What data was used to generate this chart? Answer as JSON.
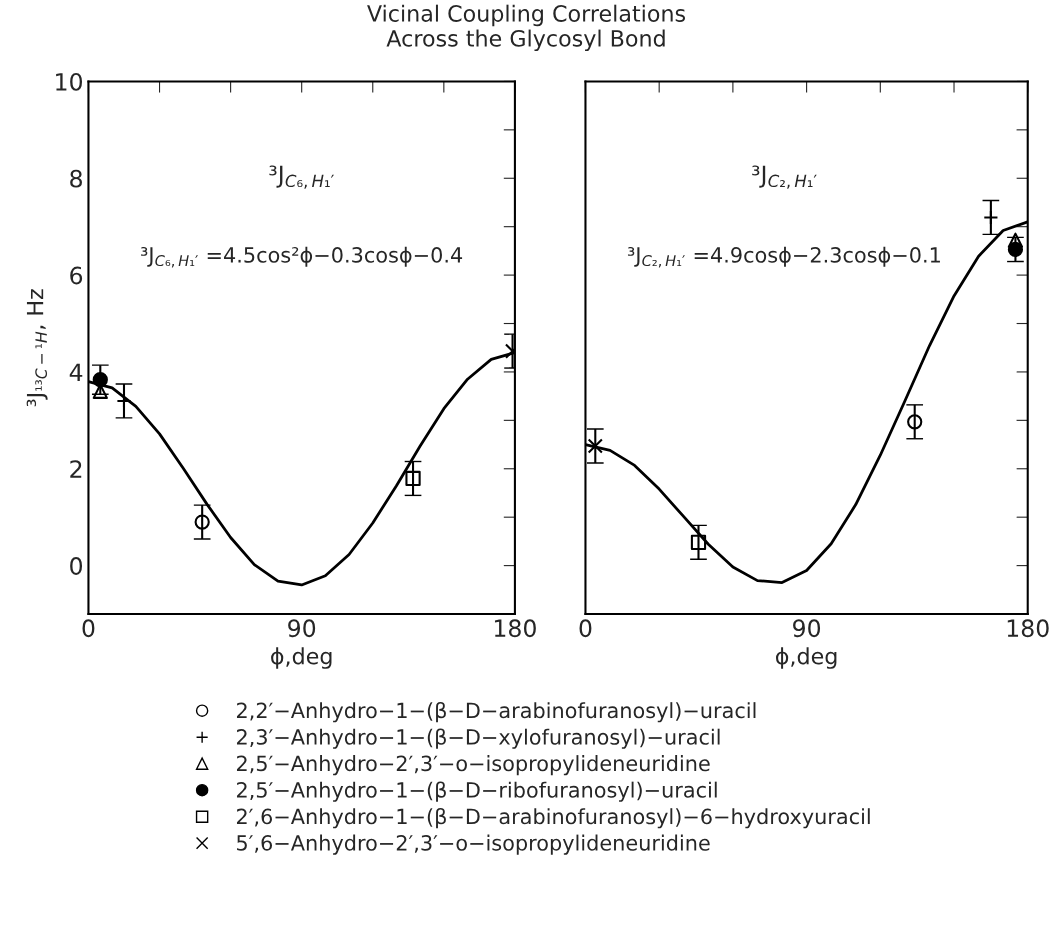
{
  "chart_data": [
    {
      "type": "scatter",
      "title": "Vicinal Coupling Correlations\nAcross the Glycosyl Bond",
      "xlabel": "ϕ,deg",
      "ylabel": "³J$_{¹³C−¹H}$, Hz",
      "xlim": [
        0,
        180
      ],
      "xticks": [
        0,
        {
          "value": 30,
          "label": null
        },
        {
          "value": 60,
          "label": null
        },
        90,
        {
          "value": 120,
          "label": null
        },
        {
          "value": 150,
          "label": null
        },
        180
      ],
      "ylim": [
        -1,
        10
      ],
      "yticks": [
        {
          "value": -1,
          "label": null
        },
        0,
        {
          "value": 1,
          "label": null
        },
        2,
        {
          "value": 3,
          "label": null
        },
        4,
        {
          "value": 5,
          "label": null
        },
        6,
        {
          "value": 7,
          "label": null
        },
        8,
        {
          "value": 9,
          "label": null
        },
        10
      ],
      "grid": false,
      "legend": "bottom",
      "annotations": [
        "³J$_{C₆,H₁′}$",
        "³J$_{C₆,H₁′}$ =4.5cos²ϕ−0.3cosϕ−0.4"
      ],
      "series": [
        {
          "name": "2,2′−Anhydro−1−(β−D−arabinofuranosyl)−uracil",
          "color": "#000000",
          "marker": "circle",
          "x": [
            48
          ],
          "values": [
            0.9
          ],
          "errors": [
            0.35
          ]
        },
        {
          "name": "2,3′−Anhydro−1−(β−D−xylofuranosyl)−uracil",
          "color": "#000000",
          "marker": "plus",
          "x": [
            15
          ],
          "values": [
            3.4
          ],
          "errors": [
            0.35
          ]
        },
        {
          "name": "2,5′−Anhydro−2′,3′−o−isopropylideneuridine",
          "color": "#000000",
          "marker": "triangle",
          "x": [
            5
          ],
          "values": [
            3.6
          ],
          "errors": [
            null
          ]
        },
        {
          "name": "2,5′−Anhydro−1−(β−D−ribofuranosyl)−uracil",
          "color": "#000000",
          "marker": "dot",
          "x": [
            5
          ],
          "values": [
            3.84
          ],
          "errors": [
            0.3
          ]
        },
        {
          "name": "2′,6−Anhydro−1−(β−D−arabinofuranosyl)−6−hydroxyuracil",
          "color": "#000000",
          "marker": "square",
          "x": [
            137
          ],
          "values": [
            1.8
          ],
          "errors": [
            0.35
          ]
        },
        {
          "name": "5′,6−Anhydro−2′,3′−o−isopropylideneuridine",
          "color": "#000000",
          "marker": "cross",
          "x": [
            179
          ],
          "values": [
            4.43
          ],
          "errors": [
            0.35
          ]
        },
        {
          "type": "line",
          "color": "#000000",
          "marker": "none",
          "line_style": "solid",
          "x": [
            0,
            10,
            20,
            30,
            40,
            50,
            60,
            70,
            80,
            90,
            100,
            110,
            120,
            130,
            140,
            150,
            160,
            170,
            180
          ],
          "values": [
            3.8,
            3.67,
            3.29,
            2.72,
            2.01,
            1.27,
            0.58,
            0.02,
            -0.32,
            -0.4,
            -0.21,
            0.23,
            0.88,
            1.65,
            2.47,
            3.24,
            3.85,
            4.26,
            4.4
          ]
        }
      ]
    },
    {
      "type": "scatter",
      "xlabel": "ϕ,deg",
      "tick_labels": "x",
      "xlim": [
        0,
        180
      ],
      "xticks": [
        0,
        {
          "value": 30,
          "label": null
        },
        {
          "value": 60,
          "label": null
        },
        90,
        {
          "value": 120,
          "label": null
        },
        {
          "value": 150,
          "label": null
        },
        180
      ],
      "ylim": [
        -1,
        10
      ],
      "yticks": [
        {
          "value": -1,
          "label": null
        },
        0,
        {
          "value": 1,
          "label": null
        },
        2,
        {
          "value": 3,
          "label": null
        },
        4,
        {
          "value": 5,
          "label": null
        },
        6,
        {
          "value": 7,
          "label": null
        },
        8,
        {
          "value": 9,
          "label": null
        },
        10
      ],
      "grid": false,
      "annotations": [
        "³J$_{C₂,H₁′}$",
        "³J$_{C₂,H₁′}$ =4.9cosϕ−2.3cosϕ−0.1"
      ],
      "series": [
        {
          "color": "#000000",
          "marker": "circle",
          "x": [
            134
          ],
          "values": [
            2.97
          ],
          "errors": [
            0.35
          ]
        },
        {
          "color": "#000000",
          "marker": "plus",
          "x": [
            165
          ],
          "values": [
            7.19
          ],
          "errors": [
            0.35
          ]
        },
        {
          "color": "#000000",
          "marker": "triangle",
          "x": [
            175
          ],
          "values": [
            6.72
          ],
          "errors": [
            null
          ]
        },
        {
          "color": "#000000",
          "marker": "dot",
          "x": [
            175
          ],
          "values": [
            6.53
          ],
          "errors": [
            0.25
          ]
        },
        {
          "color": "#000000",
          "marker": "square",
          "x": [
            46
          ],
          "values": [
            0.48
          ],
          "errors": [
            0.35
          ]
        },
        {
          "color": "#000000",
          "marker": "cross",
          "x": [
            4
          ],
          "values": [
            2.47
          ],
          "errors": [
            0.35
          ]
        },
        {
          "type": "line",
          "color": "#000000",
          "marker": "none",
          "line_style": "solid",
          "x": [
            0,
            10,
            20,
            30,
            40,
            50,
            60,
            70,
            80,
            90,
            100,
            110,
            120,
            130,
            140,
            150,
            160,
            170,
            180
          ],
          "values": [
            2.5,
            2.38,
            2.07,
            1.58,
            1.01,
            0.44,
            -0.03,
            -0.31,
            -0.35,
            -0.1,
            0.45,
            1.26,
            2.28,
            3.4,
            4.54,
            5.57,
            6.39,
            6.92,
            7.1
          ]
        }
      ]
    }
  ]
}
